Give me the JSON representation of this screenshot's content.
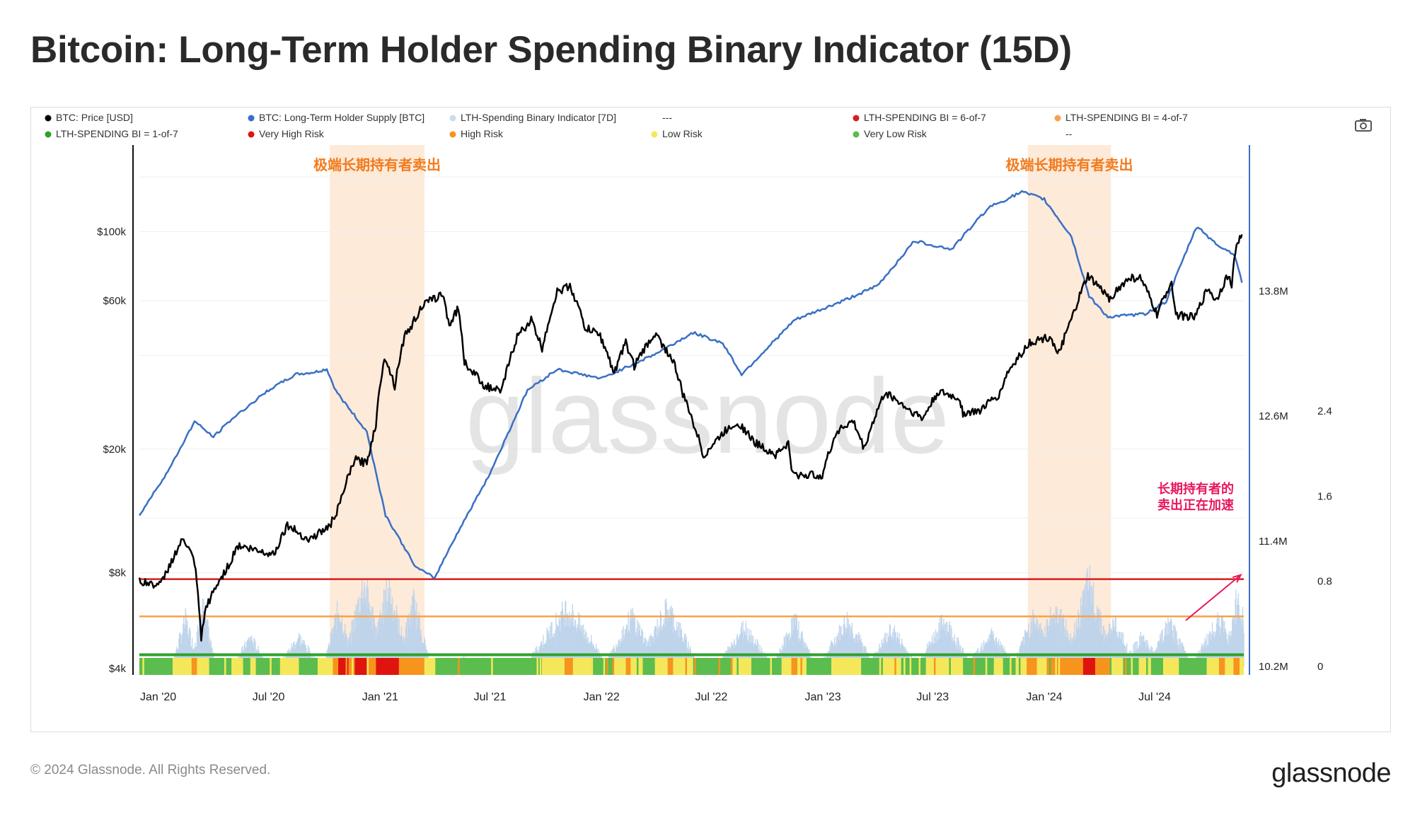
{
  "header": {
    "title": "Bitcoin: Long-Term Holder Spending Binary Indicator (15D)"
  },
  "footer": {
    "copyright": "© 2024 Glassnode. All Rights Reserved.",
    "logo": "glassnode"
  },
  "watermark": "glassnode",
  "toolbar": {
    "camera_icon": "camera-icon"
  },
  "colors": {
    "price": "#000000",
    "supply": "#3a6fc4",
    "indicator": "#bcd3ea",
    "very_high": "#e0140e",
    "high": "#f7941d",
    "low": "#f4e85a",
    "very_low": "#5bbd4e",
    "line_6of7": "#d61e1e",
    "line_4of7": "#f7a24a",
    "line_1of7": "#2fa12b",
    "highlight": "#fde6d2",
    "annotation_orange": "#f27b1d",
    "annotation_pink": "#e8175d"
  },
  "chart_data": {
    "type": "line",
    "legend": [
      {
        "label": "BTC: Price [USD]",
        "color": "#000000"
      },
      {
        "label": "BTC: Long-Term Holder Supply [BTC]",
        "color": "#3a6fc4"
      },
      {
        "label": "LTH-Spending Binary Indicator [7D]",
        "color": "#c9dcef"
      },
      {
        "label": "---",
        "color": null
      },
      {
        "label": "LTH-SPENDING BI = 6-of-7",
        "color": "#d61e1e"
      },
      {
        "label": "LTH-SPENDING BI = 4-of-7",
        "color": "#f7a24a"
      },
      {
        "label": "LTH-SPENDING BI = 1-of-7",
        "color": "#2fa12b"
      },
      {
        "label": "Very High Risk",
        "color": "#e0140e"
      },
      {
        "label": "High Risk",
        "color": "#f7941d"
      },
      {
        "label": "Low Risk",
        "color": "#f4e85a"
      },
      {
        "label": "Very Low Risk",
        "color": "#5bbd4e"
      },
      {
        "label": "--",
        "color": null
      }
    ],
    "x_range": [
      "2019-12-01",
      "2024-11-25"
    ],
    "x_ticks": [
      {
        "date": "2020-01-01",
        "label": "Jan '20"
      },
      {
        "date": "2020-07-01",
        "label": "Jul '20"
      },
      {
        "date": "2021-01-01",
        "label": "Jan '21"
      },
      {
        "date": "2021-07-01",
        "label": "Jul '21"
      },
      {
        "date": "2022-01-01",
        "label": "Jan '22"
      },
      {
        "date": "2022-07-01",
        "label": "Jul '22"
      },
      {
        "date": "2023-01-01",
        "label": "Jan '23"
      },
      {
        "date": "2023-07-01",
        "label": "Jul '23"
      },
      {
        "date": "2024-01-01",
        "label": "Jan '24"
      },
      {
        "date": "2024-07-01",
        "label": "Jul '24"
      }
    ],
    "y_price": {
      "scale": "log",
      "range": [
        4000,
        190000
      ],
      "ticks": [
        {
          "v": 4000,
          "label": "$4k"
        },
        {
          "v": 8000,
          "label": "$8k"
        },
        {
          "v": 20000,
          "label": "$20k"
        },
        {
          "v": 60000,
          "label": "$60k"
        },
        {
          "v": 100000,
          "label": "$100k"
        }
      ]
    },
    "y_supply": {
      "range": [
        10200000,
        15200000
      ],
      "ticks": [
        {
          "v": 10200000,
          "label": "10.2M"
        },
        {
          "v": 11400000,
          "label": "11.4M"
        },
        {
          "v": 12600000,
          "label": "12.6M"
        },
        {
          "v": 13800000,
          "label": "13.8M"
        }
      ]
    },
    "y_indicator": {
      "range": [
        0,
        4.9
      ],
      "ticks": [
        {
          "v": 0,
          "label": "0"
        },
        {
          "v": 0.8,
          "label": "0.8"
        },
        {
          "v": 1.6,
          "label": "1.6"
        },
        {
          "v": 2.4,
          "label": "2.4"
        }
      ]
    },
    "thresholds": [
      {
        "name": "6-of-7",
        "indicator": 0.82,
        "color": "#d61e1e"
      },
      {
        "name": "4-of-7",
        "indicator": 0.47,
        "color": "#f7a24a"
      },
      {
        "name": "1-of-7",
        "indicator": 0.11,
        "color": "#2fa12b"
      }
    ],
    "highlights": [
      {
        "start": "2020-10-10",
        "end": "2021-03-15",
        "label": "极端长期持有者卖出"
      },
      {
        "start": "2023-12-05",
        "end": "2024-04-20",
        "label": "极端长期持有者卖出"
      }
    ],
    "annotation": {
      "lines": [
        "长期持有者的",
        "卖出正在加速"
      ],
      "date": "2024-10-20",
      "indicator": 0.55
    },
    "series": [
      {
        "name": "BTC: Price [USD]",
        "axis": "price",
        "points": [
          [
            "2019-12-01",
            7500
          ],
          [
            "2020-01-05",
            7300
          ],
          [
            "2020-02-12",
            10300
          ],
          [
            "2020-03-01",
            8600
          ],
          [
            "2020-03-12",
            4900
          ],
          [
            "2020-03-20",
            6200
          ],
          [
            "2020-04-30",
            8700
          ],
          [
            "2020-05-10",
            9800
          ],
          [
            "2020-06-15",
            9400
          ],
          [
            "2020-07-10",
            9200
          ],
          [
            "2020-08-01",
            11400
          ],
          [
            "2020-09-05",
            10200
          ],
          [
            "2020-10-10",
            11300
          ],
          [
            "2020-10-25",
            13000
          ],
          [
            "2020-11-20",
            18500
          ],
          [
            "2020-12-10",
            18000
          ],
          [
            "2020-12-25",
            24000
          ],
          [
            "2021-01-08",
            40000
          ],
          [
            "2021-01-25",
            32000
          ],
          [
            "2021-02-10",
            46000
          ],
          [
            "2021-02-22",
            50000
          ],
          [
            "2021-03-12",
            58000
          ],
          [
            "2021-04-14",
            63000
          ],
          [
            "2021-04-25",
            50000
          ],
          [
            "2021-05-10",
            57000
          ],
          [
            "2021-05-20",
            38000
          ],
          [
            "2021-06-22",
            32000
          ],
          [
            "2021-07-20",
            30500
          ],
          [
            "2021-08-15",
            46000
          ],
          [
            "2021-09-07",
            52000
          ],
          [
            "2021-09-25",
            42000
          ],
          [
            "2021-10-20",
            64000
          ],
          [
            "2021-11-10",
            67000
          ],
          [
            "2021-12-05",
            49000
          ],
          [
            "2021-12-28",
            47000
          ],
          [
            "2022-01-22",
            35000
          ],
          [
            "2022-02-10",
            44000
          ],
          [
            "2022-02-24",
            37000
          ],
          [
            "2022-03-30",
            47000
          ],
          [
            "2022-04-30",
            38000
          ],
          [
            "2022-05-15",
            30000
          ],
          [
            "2022-06-18",
            19000
          ],
          [
            "2022-07-30",
            23500
          ],
          [
            "2022-08-15",
            24300
          ],
          [
            "2022-09-10",
            21000
          ],
          [
            "2022-10-15",
            19200
          ],
          [
            "2022-11-05",
            20800
          ],
          [
            "2022-11-12",
            16500
          ],
          [
            "2022-12-31",
            16500
          ],
          [
            "2023-01-25",
            23000
          ],
          [
            "2023-02-20",
            24500
          ],
          [
            "2023-03-10",
            20000
          ],
          [
            "2023-04-14",
            30500
          ],
          [
            "2023-05-20",
            27000
          ],
          [
            "2023-06-15",
            25000
          ],
          [
            "2023-07-10",
            30500
          ],
          [
            "2023-08-15",
            29000
          ],
          [
            "2023-08-20",
            26000
          ],
          [
            "2023-09-15",
            26500
          ],
          [
            "2023-10-20",
            30000
          ],
          [
            "2023-10-30",
            34500
          ],
          [
            "2023-12-08",
            44000
          ],
          [
            "2024-01-12",
            46000
          ],
          [
            "2024-01-23",
            39500
          ],
          [
            "2024-02-15",
            52000
          ],
          [
            "2024-03-13",
            72000
          ],
          [
            "2024-04-17",
            61000
          ],
          [
            "2024-05-21",
            71000
          ],
          [
            "2024-06-07",
            71000
          ],
          [
            "2024-07-05",
            54000
          ],
          [
            "2024-07-29",
            69000
          ],
          [
            "2024-08-05",
            54000
          ],
          [
            "2024-09-06",
            53000
          ],
          [
            "2024-09-27",
            66000
          ],
          [
            "2024-10-10",
            60000
          ],
          [
            "2024-10-29",
            72000
          ],
          [
            "2024-11-05",
            68000
          ],
          [
            "2024-11-13",
            91000
          ],
          [
            "2024-11-22",
            98000
          ]
        ]
      },
      {
        "name": "BTC: Long-Term Holder Supply [BTC]",
        "axis": "supply",
        "points": [
          [
            "2019-12-01",
            11650000
          ],
          [
            "2020-01-20",
            12100000
          ],
          [
            "2020-03-01",
            12550000
          ],
          [
            "2020-04-01",
            12400000
          ],
          [
            "2020-05-01",
            12570000
          ],
          [
            "2020-07-01",
            12850000
          ],
          [
            "2020-08-15",
            13000000
          ],
          [
            "2020-09-15",
            13020000
          ],
          [
            "2020-10-05",
            13050000
          ],
          [
            "2020-10-20",
            12840000
          ],
          [
            "2020-12-10",
            12450000
          ],
          [
            "2021-01-10",
            11650000
          ],
          [
            "2021-03-01",
            11150000
          ],
          [
            "2021-04-01",
            11050000
          ],
          [
            "2021-05-01",
            11400000
          ],
          [
            "2021-07-01",
            12050000
          ],
          [
            "2021-09-01",
            12850000
          ],
          [
            "2021-10-20",
            13050000
          ],
          [
            "2022-01-01",
            12960000
          ],
          [
            "2022-04-01",
            13200000
          ],
          [
            "2022-06-01",
            13400000
          ],
          [
            "2022-07-20",
            13300000
          ],
          [
            "2022-08-20",
            13000000
          ],
          [
            "2022-11-15",
            13520000
          ],
          [
            "2023-02-01",
            13700000
          ],
          [
            "2023-04-01",
            13850000
          ],
          [
            "2023-06-01",
            14280000
          ],
          [
            "2023-08-01",
            14200000
          ],
          [
            "2023-10-01",
            14600000
          ],
          [
            "2023-11-25",
            14750000
          ],
          [
            "2024-01-01",
            14680000
          ],
          [
            "2024-02-15",
            14320000
          ],
          [
            "2024-03-15",
            13750000
          ],
          [
            "2024-04-15",
            13550000
          ],
          [
            "2024-06-15",
            13580000
          ],
          [
            "2024-07-20",
            13700000
          ],
          [
            "2024-09-01",
            14320000
          ],
          [
            "2024-09-10",
            14420000
          ],
          [
            "2024-10-10",
            14250000
          ],
          [
            "2024-11-10",
            14150000
          ],
          [
            "2024-11-22",
            13880000
          ]
        ]
      }
    ],
    "indicator_bars_note": "LTH-Spending Binary Indicator [7D] daily values, generated in script as bursts",
    "indicator_bursts": [
      {
        "center": "2020-02-15",
        "width": 20,
        "peak": 0.55
      },
      {
        "center": "2020-03-15",
        "width": 18,
        "peak": 0.7
      },
      {
        "center": "2020-06-01",
        "width": 25,
        "peak": 0.35
      },
      {
        "center": "2020-08-20",
        "width": 30,
        "peak": 0.35
      },
      {
        "center": "2020-10-25",
        "width": 22,
        "peak": 0.7
      },
      {
        "center": "2020-12-05",
        "width": 30,
        "peak": 1.0
      },
      {
        "center": "2021-01-15",
        "width": 30,
        "peak": 0.95
      },
      {
        "center": "2021-02-25",
        "width": 25,
        "peak": 0.75
      },
      {
        "center": "2021-05-20",
        "width": 25,
        "peak": 0.1
      },
      {
        "center": "2021-11-05",
        "width": 60,
        "peak": 0.7
      },
      {
        "center": "2022-02-20",
        "width": 40,
        "peak": 0.6
      },
      {
        "center": "2022-04-20",
        "width": 45,
        "peak": 0.7
      },
      {
        "center": "2022-08-25",
        "width": 40,
        "peak": 0.48
      },
      {
        "center": "2022-11-15",
        "width": 30,
        "peak": 0.55
      },
      {
        "center": "2023-02-10",
        "width": 40,
        "peak": 0.55
      },
      {
        "center": "2023-04-25",
        "width": 35,
        "peak": 0.45
      },
      {
        "center": "2023-07-20",
        "width": 40,
        "peak": 0.55
      },
      {
        "center": "2023-10-05",
        "width": 35,
        "peak": 0.4
      },
      {
        "center": "2023-12-15",
        "width": 30,
        "peak": 0.6
      },
      {
        "center": "2024-01-20",
        "width": 40,
        "peak": 0.7
      },
      {
        "center": "2024-03-15",
        "width": 35,
        "peak": 1.0
      },
      {
        "center": "2024-04-25",
        "width": 30,
        "peak": 0.55
      },
      {
        "center": "2024-06-10",
        "width": 30,
        "peak": 0.35
      },
      {
        "center": "2024-07-25",
        "width": 35,
        "peak": 0.5
      },
      {
        "center": "2024-10-15",
        "width": 40,
        "peak": 0.55
      },
      {
        "center": "2024-11-15",
        "width": 20,
        "peak": 0.85
      }
    ],
    "risk_strip": [
      [
        "2019-12-01",
        "very_low"
      ],
      [
        "2020-01-25",
        "low"
      ],
      [
        "2020-02-25",
        "high"
      ],
      [
        "2020-03-05",
        "low"
      ],
      [
        "2020-03-25",
        "very_low"
      ],
      [
        "2020-05-01",
        "low"
      ],
      [
        "2020-05-20",
        "very_low"
      ],
      [
        "2020-06-01",
        "low"
      ],
      [
        "2020-06-10",
        "very_low"
      ],
      [
        "2020-07-20",
        "low"
      ],
      [
        "2020-08-20",
        "very_low"
      ],
      [
        "2020-09-20",
        "low"
      ],
      [
        "2020-10-15",
        "high"
      ],
      [
        "2020-10-22",
        "very_high"
      ],
      [
        "2020-11-10",
        "high"
      ],
      [
        "2020-11-20",
        "very_high"
      ],
      [
        "2020-12-10",
        "high"
      ],
      [
        "2020-12-25",
        "very_high"
      ],
      [
        "2021-02-01",
        "high"
      ],
      [
        "2021-03-15",
        "low"
      ],
      [
        "2021-04-01",
        "very_low"
      ],
      [
        "2021-09-25",
        "low"
      ],
      [
        "2021-11-01",
        "high"
      ],
      [
        "2021-11-15",
        "low"
      ],
      [
        "2021-12-15",
        "very_low"
      ],
      [
        "2022-01-20",
        "low"
      ],
      [
        "2022-02-10",
        "high"
      ],
      [
        "2022-02-20",
        "low"
      ],
      [
        "2022-03-10",
        "very_low"
      ],
      [
        "2022-04-01",
        "low"
      ],
      [
        "2022-04-20",
        "high"
      ],
      [
        "2022-05-01",
        "low"
      ],
      [
        "2022-06-01",
        "very_low"
      ],
      [
        "2022-08-05",
        "low"
      ],
      [
        "2022-09-05",
        "very_low"
      ],
      [
        "2022-10-25",
        "low"
      ],
      [
        "2022-11-10",
        "high"
      ],
      [
        "2022-11-20",
        "low"
      ],
      [
        "2022-12-05",
        "very_low"
      ],
      [
        "2023-01-15",
        "low"
      ],
      [
        "2023-03-05",
        "very_low"
      ],
      [
        "2023-04-10",
        "low"
      ],
      [
        "2023-05-10",
        "very_low"
      ],
      [
        "2023-06-20",
        "low"
      ],
      [
        "2023-08-20",
        "very_low"
      ],
      [
        "2023-10-10",
        "low"
      ],
      [
        "2023-10-25",
        "very_low"
      ],
      [
        "2023-11-15",
        "low"
      ],
      [
        "2023-12-01",
        "high"
      ],
      [
        "2023-12-20",
        "low"
      ],
      [
        "2024-01-05",
        "high"
      ],
      [
        "2024-03-05",
        "very_high"
      ],
      [
        "2024-03-25",
        "high"
      ],
      [
        "2024-04-20",
        "low"
      ],
      [
        "2024-05-10",
        "very_low"
      ],
      [
        "2024-06-05",
        "low"
      ],
      [
        "2024-06-25",
        "very_low"
      ],
      [
        "2024-07-15",
        "low"
      ],
      [
        "2024-08-10",
        "very_low"
      ],
      [
        "2024-09-25",
        "low"
      ],
      [
        "2024-10-15",
        "high"
      ],
      [
        "2024-10-25",
        "low"
      ],
      [
        "2024-11-08",
        "high"
      ],
      [
        "2024-11-18",
        "low"
      ]
    ]
  }
}
